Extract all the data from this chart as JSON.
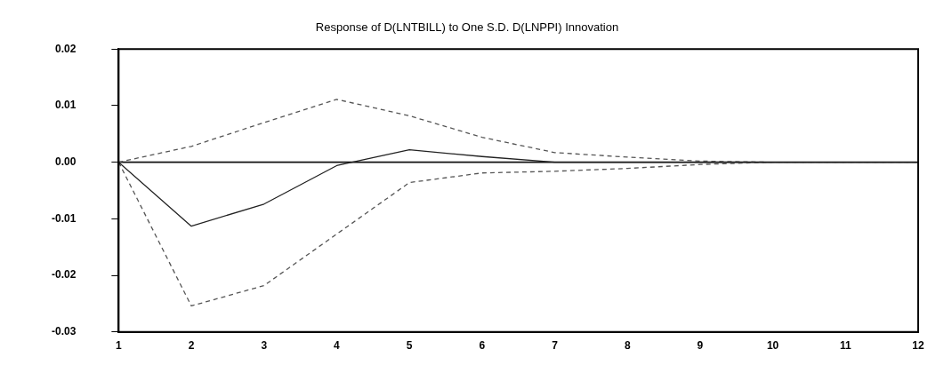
{
  "chart_data": {
    "type": "line",
    "title": "Response of D(LNTBILL) to One S.D. D(LNPPI) Innovation",
    "x": [
      1,
      2,
      3,
      4,
      5,
      6,
      7,
      8,
      9,
      10,
      11,
      12
    ],
    "series": [
      {
        "color": "#222222",
        "line_style": "solid",
        "values": [
          0,
          -0.0113,
          -0.0074,
          -0.0006,
          0.0022,
          0.001,
          0,
          0,
          0,
          0,
          0,
          0
        ]
      },
      {
        "color": "#555555",
        "line_style": "dashed",
        "values": [
          0,
          0.0028,
          0.007,
          0.0111,
          0.0082,
          0.0044,
          0.0017,
          0.0009,
          0.0002,
          0,
          0,
          0
        ]
      },
      {
        "color": "#555555",
        "line_style": "dashed",
        "values": [
          0,
          -0.0254,
          -0.0218,
          -0.0127,
          -0.0036,
          -0.0019,
          -0.0016,
          -0.0011,
          -0.0004,
          0,
          0,
          0
        ]
      }
    ],
    "xlim": [
      1,
      12
    ],
    "xticks": [
      1,
      2,
      3,
      4,
      5,
      6,
      7,
      8,
      9,
      10,
      11,
      12
    ],
    "ylim": [
      -0.03,
      0.02
    ],
    "yticks": [
      {
        "value": -0.03,
        "label": "-0.03"
      },
      {
        "value": -0.02,
        "label": "-0.02"
      },
      {
        "value": -0.01,
        "label": "-0.01"
      },
      {
        "value": 0,
        "label": "0.00"
      },
      {
        "value": 0.01,
        "label": "0.01"
      },
      {
        "value": 0.02,
        "label": "0.02"
      }
    ],
    "ref_lines": [
      {
        "axis": "y",
        "value": 0,
        "color": "#111111"
      }
    ],
    "grid": false,
    "legend": false,
    "marker": "none"
  }
}
